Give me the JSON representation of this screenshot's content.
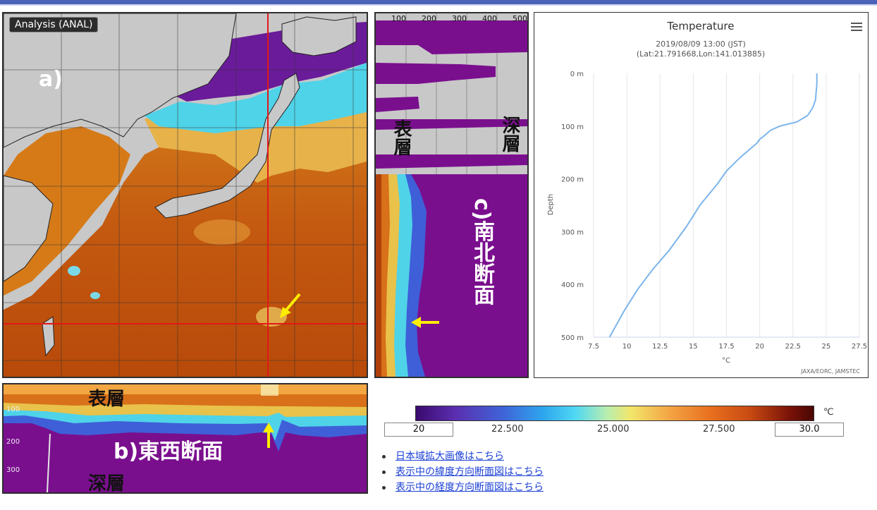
{
  "map": {
    "badge": "Analysis (ANAL)",
    "label": "a)"
  },
  "ns_section": {
    "top_ticks": [
      "100",
      "200",
      "300",
      "400",
      "500"
    ],
    "label_surface": "表層",
    "label_deep": "深層",
    "title": "c)南北断面"
  },
  "ew_section": {
    "left_ticks": [
      "100",
      "200",
      "300"
    ],
    "label_surface": "表層",
    "label_deep": "深層",
    "title": "b)東西断面"
  },
  "chart": {
    "title": "Temperature",
    "subtitle_line1": "2019/08/09 13:00 (JST)",
    "subtitle_line2": "(Lat:21.791668,Lon:141.013885)",
    "credit": "JAXA/EORC, JAMSTEC",
    "menu_icon": "hamburger-icon"
  },
  "chart_data": {
    "type": "line",
    "title": "Temperature",
    "xlabel": "°C",
    "ylabel": "Depth",
    "xlim": [
      7.5,
      27.5
    ],
    "ylim": [
      0,
      500
    ],
    "y_inverted": true,
    "x_ticks": [
      "7.5",
      "10",
      "12.5",
      "15",
      "17.5",
      "20",
      "22.5",
      "25",
      "27.5"
    ],
    "y_ticks": [
      "0 m",
      "100 m",
      "200 m",
      "300 m",
      "400 m",
      "500 m"
    ],
    "series": [
      {
        "color": "#7cb5ec",
        "x": [
          24.3,
          24.3,
          24.2,
          24.0,
          23.6,
          22.8,
          21.5,
          20.8,
          20.5,
          20.0,
          19.8,
          19.2,
          18.5,
          17.5,
          16.8,
          15.5,
          14.5,
          13.2,
          12.0,
          10.8,
          9.8,
          8.7
        ],
        "y": [
          0,
          20,
          50,
          65,
          80,
          92,
          100,
          108,
          115,
          125,
          132,
          145,
          160,
          185,
          210,
          250,
          290,
          335,
          370,
          410,
          450,
          500
        ]
      }
    ],
    "grid": true
  },
  "colorbar": {
    "unit": "℃",
    "min": "20",
    "max": "30.0",
    "ticks": [
      "22.500",
      "25.000",
      "27.500"
    ]
  },
  "links": [
    "日本域拡大画像はこちら",
    "表示中の緯度方向断面図はこちら",
    "表示中の経度方向断面図はこちら"
  ]
}
